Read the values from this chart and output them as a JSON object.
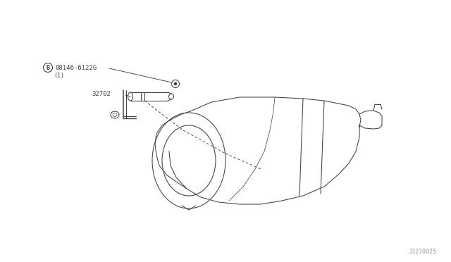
{
  "bg_color": "#ffffff",
  "line_color": "#404040",
  "text_color": "#404040",
  "label_b_text": "B",
  "label_part": "08146-6122G",
  "label_qty": "(1)",
  "label_32702": "32702",
  "label_diagram_id": "J3270025",
  "font_size_labels": 6.5,
  "font_size_id": 6.0
}
